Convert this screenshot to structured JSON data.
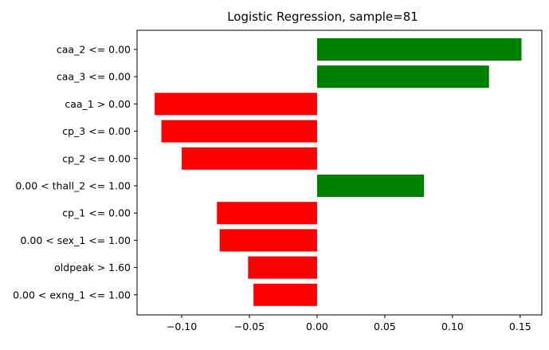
{
  "chart_data": {
    "type": "bar",
    "orientation": "horizontal",
    "title": "Logistic Regression, sample=81",
    "xlabel": "",
    "ylabel": "",
    "categories": [
      "caa_2 <= 0.00",
      "caa_3 <= 0.00",
      "caa_1 > 0.00",
      "cp_3 <= 0.00",
      "cp_2 <= 0.00",
      "0.00 < thall_2 <= 1.00",
      "cp_1 <= 0.00",
      "0.00 < sex_1 <= 1.00",
      "oldpeak > 1.60",
      "0.00 < exng_1 <= 1.00"
    ],
    "values": [
      0.151,
      0.127,
      -0.12,
      -0.115,
      -0.1,
      0.079,
      -0.074,
      -0.072,
      -0.051,
      -0.047
    ],
    "xlim": [
      -0.133,
      0.166
    ],
    "xticks": [
      -0.1,
      -0.05,
      0.0,
      0.05,
      0.1,
      0.15
    ],
    "xtick_labels": [
      "−0.10",
      "−0.05",
      "0.00",
      "0.05",
      "0.10",
      "0.15"
    ],
    "grid": false,
    "legend": "none",
    "colors": {
      "positive": "#008000",
      "negative": "#ff0000",
      "axes": "#000000",
      "background": "#ffffff"
    }
  }
}
